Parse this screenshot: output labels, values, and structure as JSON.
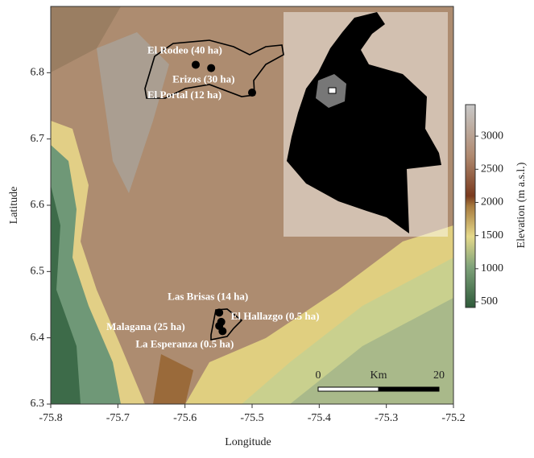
{
  "chart_data": {
    "type": "scatter",
    "xlabel": "Longitude",
    "ylabel": "Latitude",
    "xlim": [
      -75.8,
      -75.2
    ],
    "ylim": [
      6.3,
      6.9
    ],
    "xticks": [
      -75.8,
      -75.7,
      -75.6,
      -75.5,
      -75.4,
      -75.3,
      -75.2
    ],
    "yticks": [
      6.3,
      6.4,
      6.5,
      6.6,
      6.7,
      6.8
    ],
    "x": [
      -75.584,
      -75.561,
      -75.5,
      -75.549,
      -75.546,
      -75.549,
      -75.544
    ],
    "y": [
      6.812,
      6.807,
      6.77,
      6.438,
      6.424,
      6.418,
      6.41
    ],
    "labels": [
      "El Rodeo (40 ha)",
      "Erizos (30 ha)",
      "El Portal (12 ha)",
      "Las Brisas (14 ha)",
      "El Hallazgo (0.5 ha)",
      "Malagana (25 ha)",
      "La Esperanza (0.5 ha)"
    ],
    "color": "#000000",
    "colorbar": {
      "label": "Elevation (m a.s.l.)",
      "lim": [
        415,
        3475
      ],
      "ticks": [
        500,
        1000,
        1500,
        2000,
        2500,
        3000
      ]
    },
    "scale_bar": {
      "ticks": [
        0,
        20
      ],
      "unit": "Km"
    }
  }
}
